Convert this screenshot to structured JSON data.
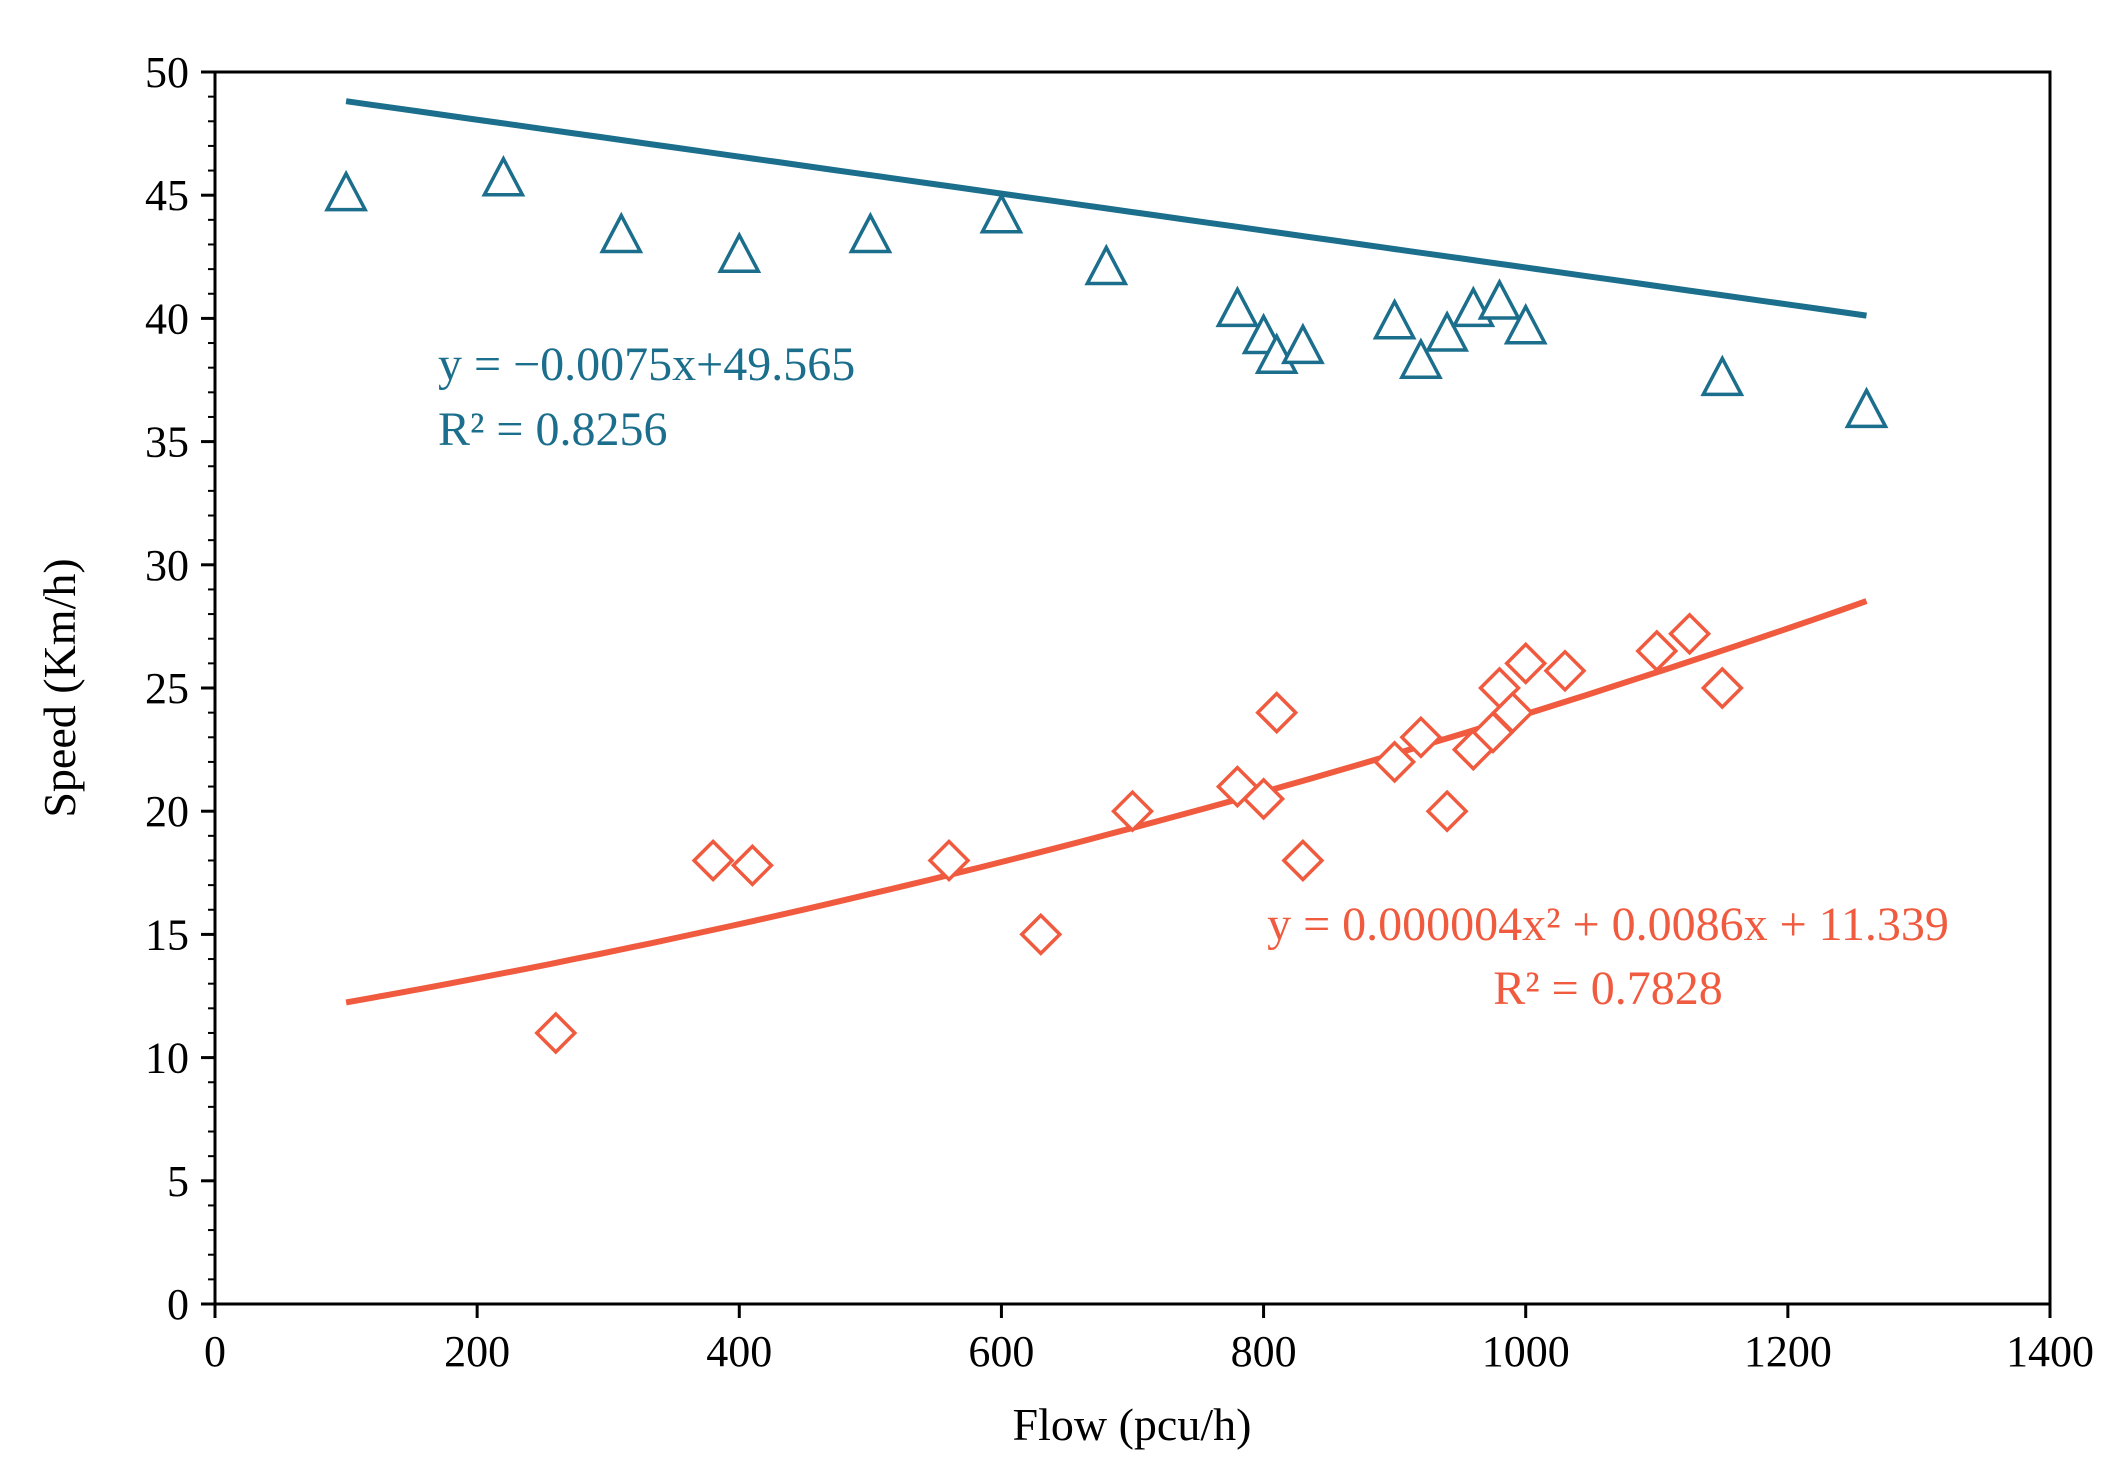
{
  "chart_data": {
    "type": "scatter",
    "xlabel": "Flow (pcu/h)",
    "ylabel": "Speed (Km/h)",
    "xlim": [
      0,
      1400
    ],
    "ylim": [
      0,
      50
    ],
    "x_ticks": [
      0,
      200,
      400,
      600,
      800,
      1000,
      1200,
      1400
    ],
    "y_ticks": [
      0,
      5,
      10,
      15,
      20,
      25,
      30,
      35,
      40,
      45,
      50
    ],
    "x_tick_labels": [
      "0",
      "200",
      "400",
      "600",
      "800",
      "1000",
      "1200",
      "1400"
    ],
    "y_tick_labels": [
      "0",
      "5",
      "10",
      "15",
      "20",
      "25",
      "30",
      "35",
      "40",
      "45",
      "50"
    ],
    "grid": false,
    "series": [
      {
        "name": "triangles",
        "marker": "triangle",
        "color": "#1b6e8c",
        "points": [
          [
            100,
            45.0
          ],
          [
            220,
            45.6
          ],
          [
            310,
            43.3
          ],
          [
            400,
            42.5
          ],
          [
            500,
            43.3
          ],
          [
            600,
            44.1
          ],
          [
            680,
            42.0
          ],
          [
            780,
            40.3
          ],
          [
            800,
            39.2
          ],
          [
            810,
            38.4
          ],
          [
            830,
            38.8
          ],
          [
            900,
            39.8
          ],
          [
            920,
            38.2
          ],
          [
            940,
            39.3
          ],
          [
            960,
            40.3
          ],
          [
            980,
            40.6
          ],
          [
            1000,
            39.6
          ],
          [
            1150,
            37.5
          ],
          [
            1260,
            36.2
          ]
        ],
        "trendline": {
          "kind": "linear",
          "a": -0.0075,
          "b": 49.565,
          "x_range": [
            100,
            1260
          ]
        },
        "equation_label": "y = −0.0075x+49.565",
        "r2_label": "R² = 0.8256"
      },
      {
        "name": "diamonds",
        "marker": "diamond",
        "color": "#f05a3e",
        "points": [
          [
            260,
            11.0
          ],
          [
            380,
            18.0
          ],
          [
            410,
            17.8
          ],
          [
            560,
            18.0
          ],
          [
            630,
            15.0
          ],
          [
            700,
            20.0
          ],
          [
            780,
            21.0
          ],
          [
            800,
            20.5
          ],
          [
            810,
            24.0
          ],
          [
            830,
            18.0
          ],
          [
            900,
            22.0
          ],
          [
            920,
            23.0
          ],
          [
            940,
            20.0
          ],
          [
            960,
            22.5
          ],
          [
            975,
            23.2
          ],
          [
            980,
            25.0
          ],
          [
            990,
            24.0
          ],
          [
            1000,
            26.0
          ],
          [
            1030,
            25.7
          ],
          [
            1100,
            26.5
          ],
          [
            1125,
            27.2
          ],
          [
            1150,
            25.0
          ]
        ],
        "trendline": {
          "kind": "quadratic",
          "a": 4e-06,
          "b": 0.0086,
          "c": 11.339,
          "x_range": [
            100,
            1260
          ]
        },
        "equation_label": "y = 0.000004x² + 0.0086x + 11.339",
        "r2_label": "R² = 0.7828"
      }
    ]
  }
}
